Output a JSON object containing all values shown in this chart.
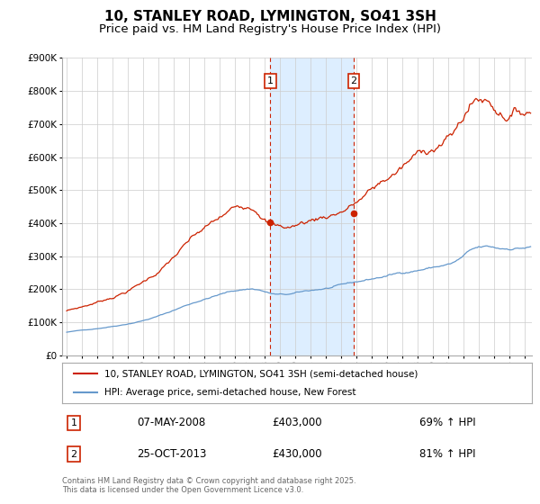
{
  "title": "10, STANLEY ROAD, LYMINGTON, SO41 3SH",
  "subtitle": "Price paid vs. HM Land Registry's House Price Index (HPI)",
  "background_color": "#ffffff",
  "plot_bg_color": "#ffffff",
  "grid_color": "#cccccc",
  "hpi_line_color": "#6699cc",
  "price_line_color": "#cc2200",
  "ylim": [
    0,
    900000
  ],
  "yticks": [
    0,
    100000,
    200000,
    300000,
    400000,
    500000,
    600000,
    700000,
    800000,
    900000
  ],
  "ytick_labels": [
    "£0",
    "£100K",
    "£200K",
    "£300K",
    "£400K",
    "£500K",
    "£600K",
    "£700K",
    "£800K",
    "£900K"
  ],
  "xmin": 1994.7,
  "xmax": 2025.5,
  "sale1_x": 2008.354,
  "sale1_y": 403000,
  "sale1_date": "07-MAY-2008",
  "sale1_price": "£403,000",
  "sale1_hpi": "69% ↑ HPI",
  "sale2_x": 2013.815,
  "sale2_y": 430000,
  "sale2_date": "25-OCT-2013",
  "sale2_price": "£430,000",
  "sale2_hpi": "81% ↑ HPI",
  "legend_label1": "10, STANLEY ROAD, LYMINGTON, SO41 3SH (semi-detached house)",
  "legend_label2": "HPI: Average price, semi-detached house, New Forest",
  "footer": "Contains HM Land Registry data © Crown copyright and database right 2025.\nThis data is licensed under the Open Government Licence v3.0.",
  "shaded_region_color": "#ddeeff",
  "title_fontsize": 11,
  "subtitle_fontsize": 9.5
}
